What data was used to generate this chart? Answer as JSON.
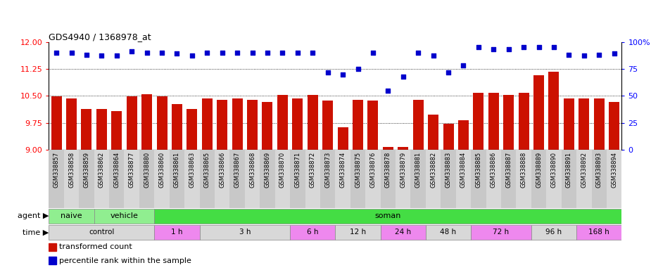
{
  "title": "GDS4940 / 1368978_at",
  "samples": [
    "GSM338857",
    "GSM338858",
    "GSM338859",
    "GSM338862",
    "GSM338864",
    "GSM338877",
    "GSM338880",
    "GSM338860",
    "GSM338861",
    "GSM338863",
    "GSM338865",
    "GSM338866",
    "GSM338867",
    "GSM338868",
    "GSM338869",
    "GSM338870",
    "GSM338871",
    "GSM338872",
    "GSM338873",
    "GSM338874",
    "GSM338875",
    "GSM338876",
    "GSM338878",
    "GSM338879",
    "GSM338881",
    "GSM338882",
    "GSM338883",
    "GSM338884",
    "GSM338885",
    "GSM338886",
    "GSM338887",
    "GSM338888",
    "GSM338889",
    "GSM338890",
    "GSM338891",
    "GSM338892",
    "GSM338893",
    "GSM338894"
  ],
  "bar_values": [
    10.48,
    10.43,
    10.13,
    10.13,
    10.08,
    10.48,
    10.55,
    10.48,
    10.27,
    10.13,
    10.43,
    10.38,
    10.43,
    10.38,
    10.33,
    10.53,
    10.43,
    10.53,
    10.37,
    9.63,
    10.38,
    10.37,
    9.08,
    9.08,
    10.38,
    9.97,
    9.73,
    9.83,
    10.58,
    10.58,
    10.53,
    10.58,
    11.08,
    11.18,
    10.43,
    10.43,
    10.43,
    10.33
  ],
  "dot_pct": [
    90,
    90,
    88,
    87,
    87,
    91,
    90,
    90,
    89,
    87,
    90,
    90,
    90,
    90,
    90,
    90,
    90,
    90,
    72,
    70,
    75,
    90,
    55,
    68,
    90,
    87,
    72,
    78,
    95,
    93,
    93,
    95,
    95,
    95,
    88,
    87,
    88,
    89
  ],
  "agent_groups": [
    {
      "label": "naive",
      "start": 0,
      "end": 2,
      "color": "#90EE90"
    },
    {
      "label": "vehicle",
      "start": 3,
      "end": 6,
      "color": "#90EE90"
    },
    {
      "label": "soman",
      "start": 7,
      "end": 37,
      "color": "#44DD44"
    }
  ],
  "time_groups": [
    {
      "label": "control",
      "start": 0,
      "end": 6,
      "color": "#D8D8D8"
    },
    {
      "label": "1 h",
      "start": 7,
      "end": 9,
      "color": "#EE88EE"
    },
    {
      "label": "3 h",
      "start": 10,
      "end": 15,
      "color": "#D8D8D8"
    },
    {
      "label": "6 h",
      "start": 16,
      "end": 18,
      "color": "#EE88EE"
    },
    {
      "label": "12 h",
      "start": 19,
      "end": 21,
      "color": "#D8D8D8"
    },
    {
      "label": "24 h",
      "start": 22,
      "end": 24,
      "color": "#EE88EE"
    },
    {
      "label": "48 h",
      "start": 25,
      "end": 27,
      "color": "#D8D8D8"
    },
    {
      "label": "72 h",
      "start": 28,
      "end": 31,
      "color": "#EE88EE"
    },
    {
      "label": "96 h",
      "start": 32,
      "end": 34,
      "color": "#D8D8D8"
    },
    {
      "label": "168 h",
      "start": 35,
      "end": 37,
      "color": "#EE88EE"
    }
  ],
  "ylim": [
    9.0,
    12.0
  ],
  "yticks_left": [
    9.0,
    9.75,
    10.5,
    11.25,
    12.0
  ],
  "yticks_right": [
    0,
    25,
    50,
    75,
    100
  ],
  "bar_color": "#CC1100",
  "dot_color": "#0000CC",
  "xtick_band_colors": [
    "#C8C8C8",
    "#D8D8D8"
  ]
}
